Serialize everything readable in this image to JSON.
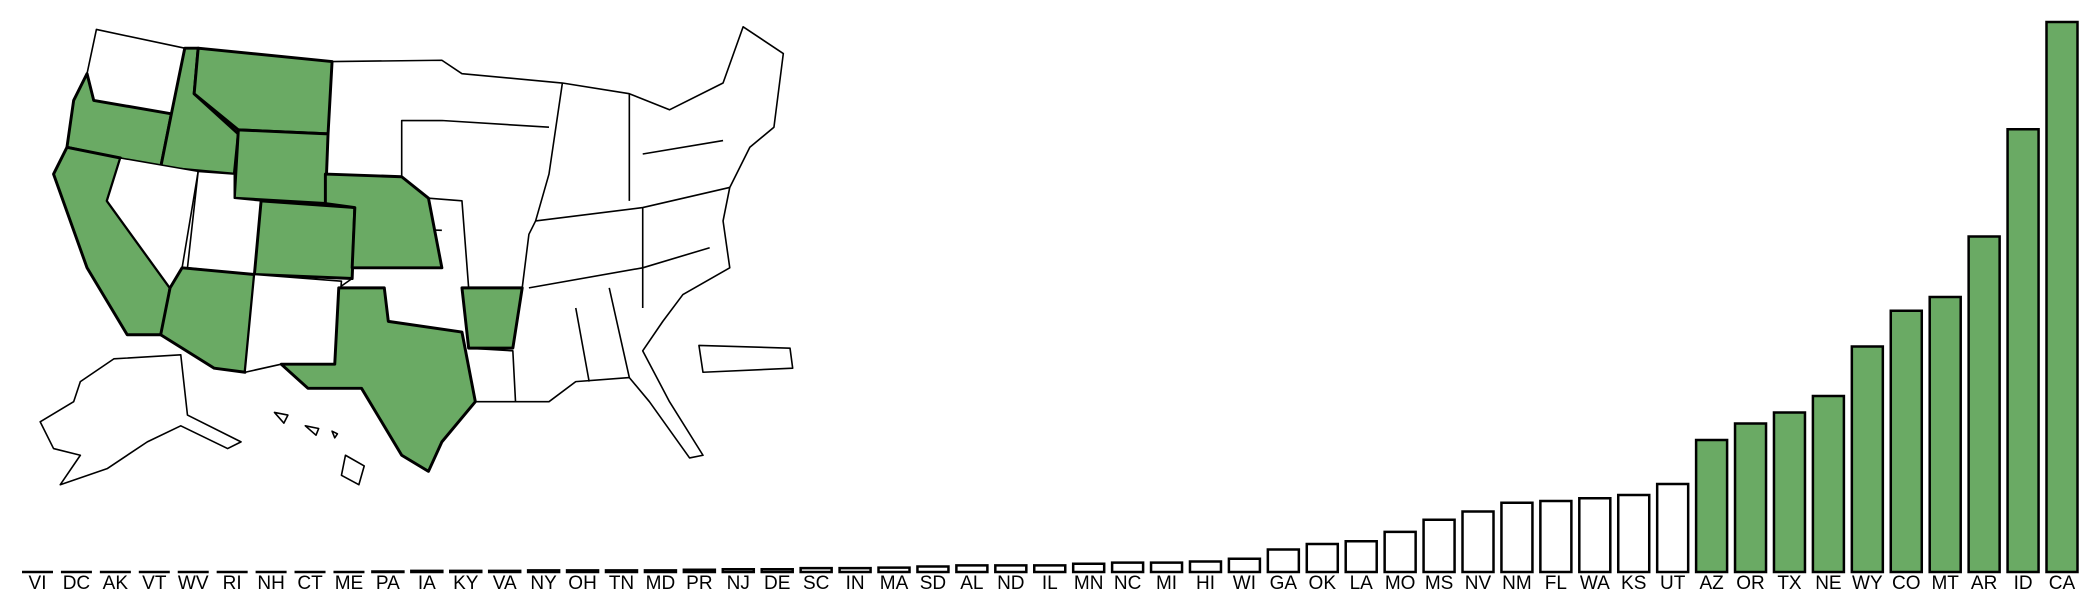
{
  "chart_data": {
    "type": "bar",
    "categories": [
      "VI",
      "DC",
      "AK",
      "VT",
      "WV",
      "RI",
      "NH",
      "CT",
      "ME",
      "PA",
      "IA",
      "KY",
      "VA",
      "NY",
      "OH",
      "TN",
      "MD",
      "PR",
      "NJ",
      "DE",
      "SC",
      "IN",
      "MA",
      "SD",
      "AL",
      "ND",
      "IL",
      "MN",
      "NC",
      "MI",
      "HI",
      "WI",
      "GA",
      "OK",
      "LA",
      "MO",
      "MS",
      "NV",
      "NM",
      "FL",
      "WA",
      "KS",
      "UT",
      "AZ",
      "OR",
      "TX",
      "NE",
      "WY",
      "CO",
      "MT",
      "AR",
      "ID",
      "CA"
    ],
    "values": [
      0,
      0,
      0,
      0,
      0,
      0,
      0,
      0,
      0,
      0.1,
      0.2,
      0.2,
      0.2,
      0.3,
      0.3,
      0.3,
      0.3,
      0.4,
      0.5,
      0.5,
      0.7,
      0.7,
      0.8,
      1,
      1.2,
      1.2,
      1.2,
      1.5,
      1.7,
      1.7,
      1.9,
      2.4,
      4.1,
      5.1,
      5.6,
      7.3,
      9.5,
      11,
      12.6,
      12.9,
      13.4,
      14,
      16,
      24,
      27,
      29,
      32,
      41,
      47.5,
      50,
      61,
      80.5,
      100
    ],
    "colors": [
      "#ffffff",
      "#ffffff",
      "#ffffff",
      "#ffffff",
      "#ffffff",
      "#ffffff",
      "#ffffff",
      "#ffffff",
      "#ffffff",
      "#ffffff",
      "#ffffff",
      "#ffffff",
      "#ffffff",
      "#ffffff",
      "#ffffff",
      "#ffffff",
      "#ffffff",
      "#ffffff",
      "#ffffff",
      "#ffffff",
      "#ffffff",
      "#ffffff",
      "#ffffff",
      "#ffffff",
      "#ffffff",
      "#ffffff",
      "#ffffff",
      "#ffffff",
      "#ffffff",
      "#ffffff",
      "#ffffff",
      "#ffffff",
      "#ffffff",
      "#ffffff",
      "#ffffff",
      "#ffffff",
      "#ffffff",
      "#ffffff",
      "#ffffff",
      "#ffffff",
      "#ffffff",
      "#ffffff",
      "#ffffff",
      "#6aaa64",
      "#6aaa64",
      "#6aaa64",
      "#6aaa64",
      "#6aaa64",
      "#6aaa64",
      "#6aaa64",
      "#6aaa64",
      "#6aaa64",
      "#6aaa64"
    ],
    "ylim": [
      0,
      100
    ]
  }
}
